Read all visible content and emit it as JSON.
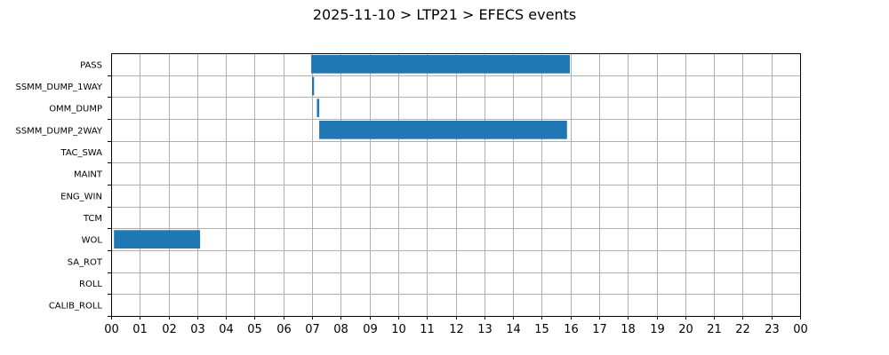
{
  "chart_data": {
    "type": "gantt",
    "title": "2025-11-10 > LTP21 > EFECS events",
    "xlabel": "",
    "ylabel": "",
    "x_unit": "hours",
    "xlim": [
      0,
      24
    ],
    "x_tick_labels": [
      "00",
      "01",
      "02",
      "03",
      "04",
      "05",
      "06",
      "07",
      "08",
      "09",
      "10",
      "11",
      "12",
      "13",
      "14",
      "15",
      "16",
      "17",
      "18",
      "19",
      "20",
      "21",
      "22",
      "23",
      "00"
    ],
    "categories": [
      "PASS",
      "SSMM_DUMP_1WAY",
      "OMM_DUMP",
      "SSMM_DUMP_2WAY",
      "TAC_SWA",
      "MAINT",
      "ENG_WIN",
      "TCM",
      "WOL",
      "SA_ROT",
      "ROLL",
      "CALIB_ROLL"
    ],
    "events": [
      {
        "category": "PASS",
        "start": 6.97,
        "end": 15.98
      },
      {
        "category": "SSMM_DUMP_1WAY",
        "start": 7.0,
        "end": 7.07
      },
      {
        "category": "OMM_DUMP",
        "start": 7.17,
        "end": 7.25
      },
      {
        "category": "SSMM_DUMP_2WAY",
        "start": 7.25,
        "end": 15.88
      },
      {
        "category": "WOL",
        "start": 0.1,
        "end": 3.1
      }
    ],
    "bar_color": "#1f77b4",
    "grid": true,
    "legend": "none"
  }
}
